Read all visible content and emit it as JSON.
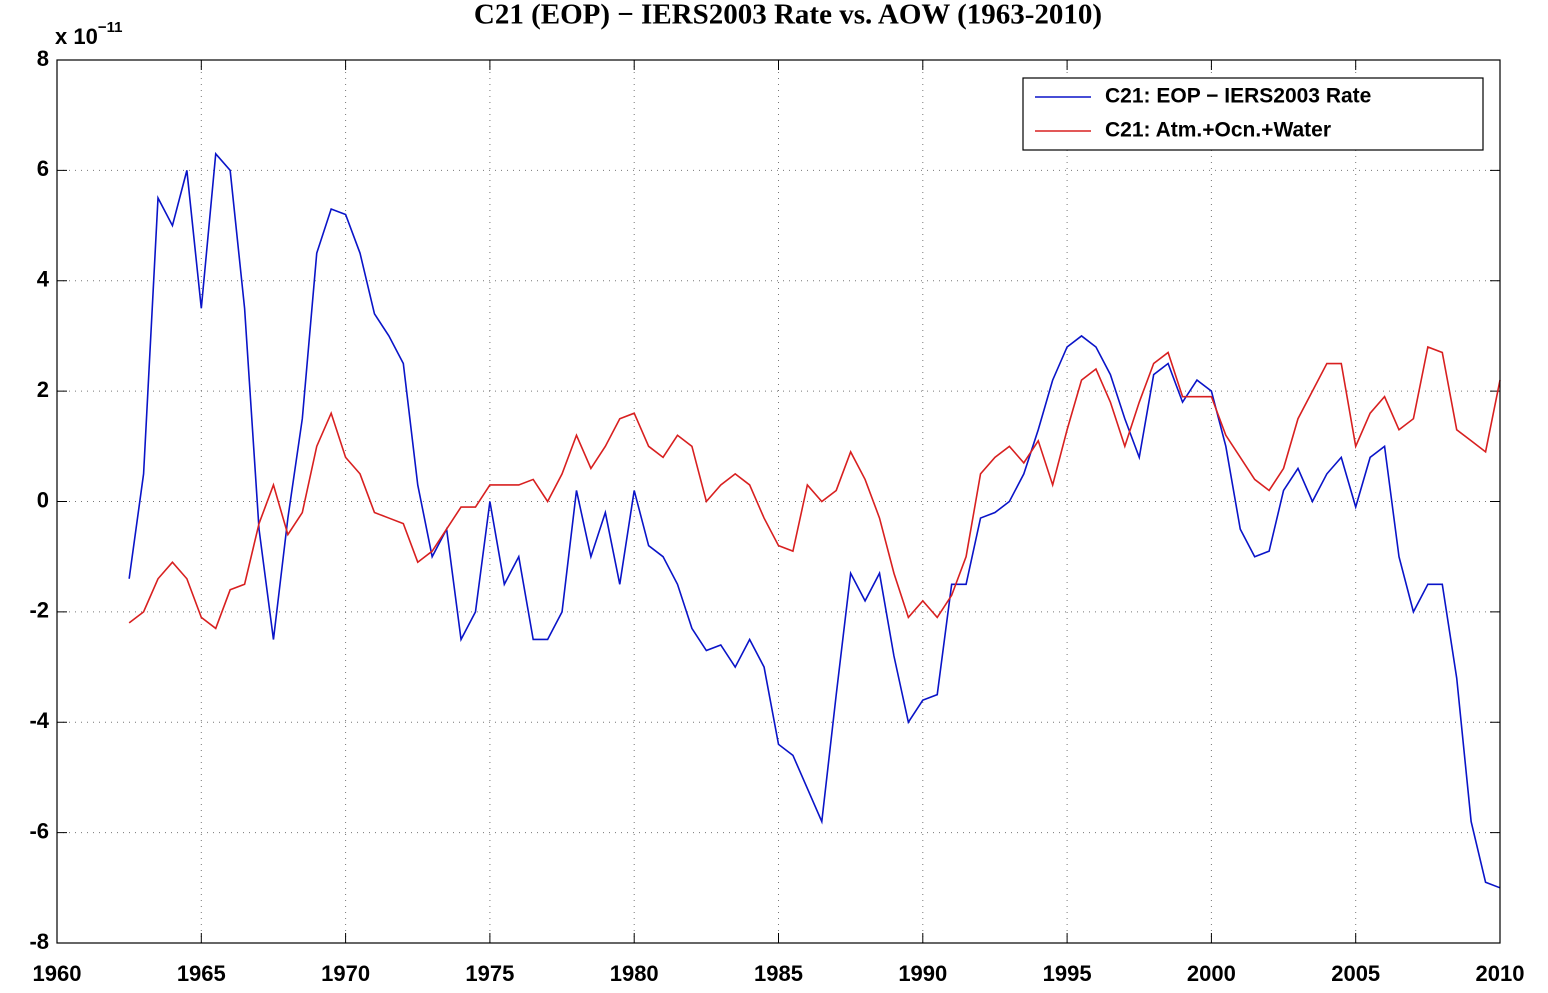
{
  "chart_data": {
    "type": "line",
    "title": "C21 (EOP) − IERS2003 Rate vs. AOW (1963-2010)",
    "y_scale_label": "x 10",
    "y_scale_exponent": "−11",
    "xlim": [
      1960,
      2010
    ],
    "xticks": [
      1960,
      1965,
      1970,
      1975,
      1980,
      1985,
      1990,
      1995,
      2000,
      2005,
      2010
    ],
    "ylim": [
      -8,
      8
    ],
    "yticks": [
      -8,
      -6,
      -4,
      -2,
      0,
      2,
      4,
      6,
      8
    ],
    "grid": true,
    "legend": "upper right",
    "x": [
      1962.5,
      1963,
      1963.5,
      1964,
      1964.5,
      1965,
      1965.5,
      1966,
      1966.5,
      1967,
      1967.5,
      1968,
      1968.5,
      1969,
      1969.5,
      1970,
      1970.5,
      1971,
      1971.5,
      1972,
      1972.5,
      1973,
      1973.5,
      1974,
      1974.5,
      1975,
      1975.5,
      1976,
      1976.5,
      1977,
      1977.5,
      1978,
      1978.5,
      1979,
      1979.5,
      1980,
      1980.5,
      1981,
      1981.5,
      1982,
      1982.5,
      1983,
      1983.5,
      1984,
      1984.5,
      1985,
      1985.5,
      1986,
      1986.5,
      1987,
      1987.5,
      1988,
      1988.5,
      1989,
      1989.5,
      1990,
      1990.5,
      1991,
      1991.5,
      1992,
      1992.5,
      1993,
      1993.5,
      1994,
      1994.5,
      1995,
      1995.5,
      1996,
      1996.5,
      1997,
      1997.5,
      1998,
      1998.5,
      1999,
      1999.5,
      2000,
      2000.5,
      2001,
      2001.5,
      2002,
      2002.5,
      2003,
      2003.5,
      2004,
      2004.5,
      2005,
      2005.5,
      2006,
      2006.5,
      2007,
      2007.5,
      2008,
      2008.5,
      2009,
      2009.5,
      2010
    ],
    "series": [
      {
        "name": "C21: EOP − IERS2003 Rate",
        "color": "#0a14c8",
        "values": [
          -1.4,
          0.5,
          5.5,
          5.0,
          6.0,
          3.5,
          6.3,
          6.0,
          3.5,
          -0.5,
          -2.5,
          -0.3,
          1.5,
          4.5,
          5.3,
          5.2,
          4.5,
          3.4,
          3.0,
          2.5,
          0.3,
          -1.0,
          -0.5,
          -2.5,
          -2.0,
          0.0,
          -1.5,
          -1.0,
          -2.5,
          -2.5,
          -2.0,
          0.2,
          -1.0,
          -0.2,
          -1.5,
          0.2,
          -0.8,
          -1.0,
          -1.5,
          -2.3,
          -2.7,
          -2.6,
          -3.0,
          -2.5,
          -3.0,
          -4.4,
          -4.6,
          -5.2,
          -5.8,
          -3.5,
          -1.3,
          -1.8,
          -1.3,
          -2.8,
          -4.0,
          -3.6,
          -3.5,
          -1.5,
          -1.5,
          -0.3,
          -0.2,
          0.0,
          0.5,
          1.3,
          2.2,
          2.8,
          3.0,
          2.8,
          2.3,
          1.5,
          0.8,
          2.3,
          2.5,
          1.8,
          2.2,
          2.0,
          1.0,
          -0.5,
          -1.0,
          -0.9,
          0.2,
          0.6,
          0.0,
          0.5,
          0.8,
          -0.1,
          0.8,
          1.0,
          -1.0,
          -2.0,
          -1.5,
          -1.5,
          -3.2,
          -5.8,
          -6.9,
          -7.0
        ]
      },
      {
        "name": "C21: Atm.+Ocn.+Water",
        "color": "#d82020",
        "values": [
          -2.2,
          -2.0,
          -1.4,
          -1.1,
          -1.4,
          -2.1,
          -2.3,
          -1.6,
          -1.5,
          -0.4,
          0.3,
          -0.6,
          -0.2,
          1.0,
          1.6,
          0.8,
          0.5,
          -0.2,
          -0.3,
          -0.4,
          -1.1,
          -0.9,
          -0.5,
          -0.1,
          -0.1,
          0.3,
          0.3,
          0.3,
          0.4,
          0.0,
          0.5,
          1.2,
          0.6,
          1.0,
          1.5,
          1.6,
          1.0,
          0.8,
          1.2,
          1.0,
          0.0,
          0.3,
          0.5,
          0.3,
          -0.3,
          -0.8,
          -0.9,
          0.3,
          0.0,
          0.2,
          0.9,
          0.4,
          -0.3,
          -1.3,
          -2.1,
          -1.8,
          -2.1,
          -1.7,
          -1.0,
          0.5,
          0.8,
          1.0,
          0.7,
          1.1,
          0.3,
          1.3,
          2.2,
          2.4,
          1.8,
          1.0,
          1.8,
          2.5,
          2.7,
          1.9,
          1.9,
          1.9,
          1.2,
          0.8,
          0.4,
          0.2,
          0.6,
          1.5,
          2.0,
          2.5,
          2.5,
          1.0,
          1.6,
          1.9,
          1.3,
          1.5,
          2.8,
          2.7,
          1.3,
          1.1,
          0.9,
          2.2
        ]
      }
    ]
  }
}
